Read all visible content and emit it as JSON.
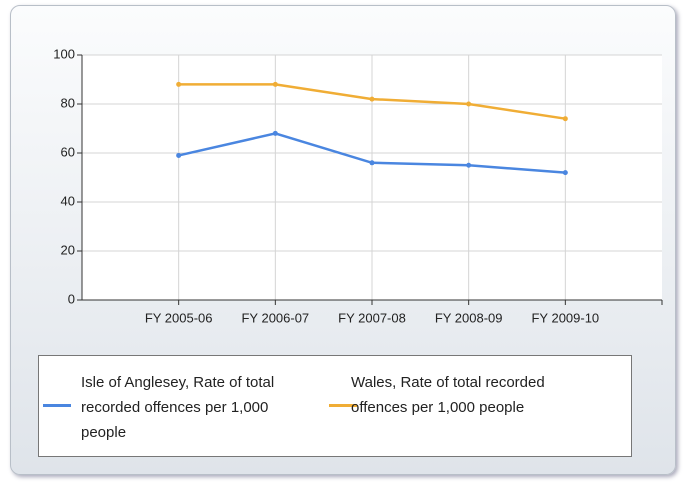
{
  "chart_data": {
    "type": "line",
    "categories": [
      "FY 2005-06",
      "FY 2006-07",
      "FY 2007-08",
      "FY 2008-09",
      "FY 2009-10"
    ],
    "series": [
      {
        "name": "Isle of Anglesey, Rate of total recorded offences per 1,000 people",
        "color": "#4a86e0",
        "values": [
          59,
          68,
          56,
          55,
          52
        ]
      },
      {
        "name": "Wales, Rate of total recorded offences per 1,000 people",
        "color": "#f0ad35",
        "values": [
          88,
          88,
          82,
          80,
          74
        ]
      }
    ],
    "ylim": [
      0,
      100
    ],
    "yticks": [
      0,
      20,
      40,
      60,
      80,
      100
    ],
    "grid": true,
    "legend": "bottom"
  }
}
